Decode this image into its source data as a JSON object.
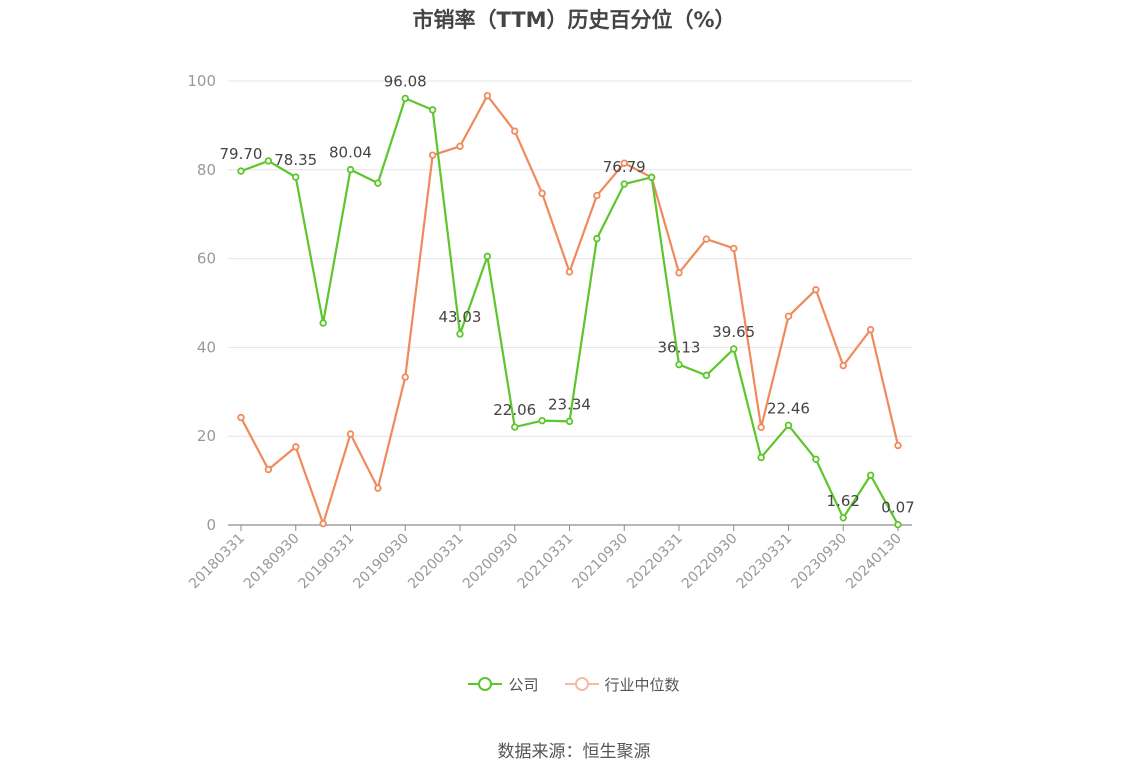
{
  "chart_data": {
    "type": "line",
    "title": "市销率（TTM）历史百分位（%）",
    "ylim": [
      0,
      100
    ],
    "yticks": [
      0,
      20,
      40,
      60,
      80,
      100
    ],
    "grid": true,
    "legend_position": "bottom",
    "x": [
      "20180331",
      "20180630",
      "20180930",
      "20181231",
      "20190331",
      "20190630",
      "20190930",
      "20191231",
      "20200331",
      "20200630",
      "20200930",
      "20201231",
      "20210331",
      "20210630",
      "20210930",
      "20211231",
      "20220331",
      "20220630",
      "20220930",
      "20221231",
      "20230331",
      "20230630",
      "20230930",
      "20231231",
      "20240130"
    ],
    "xtick_labels": [
      "20180331",
      "20180930",
      "20190331",
      "20190930",
      "20200331",
      "20200930",
      "20210331",
      "20210930",
      "20220331",
      "20220930",
      "20230331",
      "20230930",
      "20240130"
    ],
    "series": [
      {
        "name": "公司",
        "color": "#5cc62c",
        "values": [
          79.7,
          82.0,
          78.35,
          45.5,
          80.04,
          77.0,
          96.08,
          93.5,
          43.03,
          60.5,
          22.06,
          23.5,
          23.34,
          64.5,
          76.79,
          78.3,
          36.13,
          33.7,
          39.65,
          15.2,
          22.46,
          14.8,
          1.62,
          11.2,
          0.07
        ],
        "labels": [
          "79.70",
          null,
          "78.35",
          null,
          "80.04",
          null,
          "96.08",
          null,
          "43.03",
          null,
          "22.06",
          null,
          "23.34",
          null,
          "76.79",
          null,
          "36.13",
          null,
          "39.65",
          null,
          "22.46",
          null,
          "1.62",
          null,
          "0.07"
        ]
      },
      {
        "name": "行业中位数",
        "color": "#f08a5d",
        "values": [
          24.2,
          12.5,
          17.6,
          0.3,
          20.5,
          8.3,
          33.3,
          83.3,
          85.3,
          96.7,
          88.7,
          74.7,
          57.0,
          74.2,
          81.5,
          78.3,
          56.8,
          64.4,
          62.3,
          22.0,
          47.0,
          53.0,
          35.9,
          44.0,
          17.9
        ]
      }
    ]
  },
  "legend": {
    "items": [
      {
        "label": "公司",
        "color": "#5cc62c"
      },
      {
        "label": "行业中位数",
        "color": "#f3bca5"
      }
    ]
  },
  "source": "数据来源：恒生聚源"
}
